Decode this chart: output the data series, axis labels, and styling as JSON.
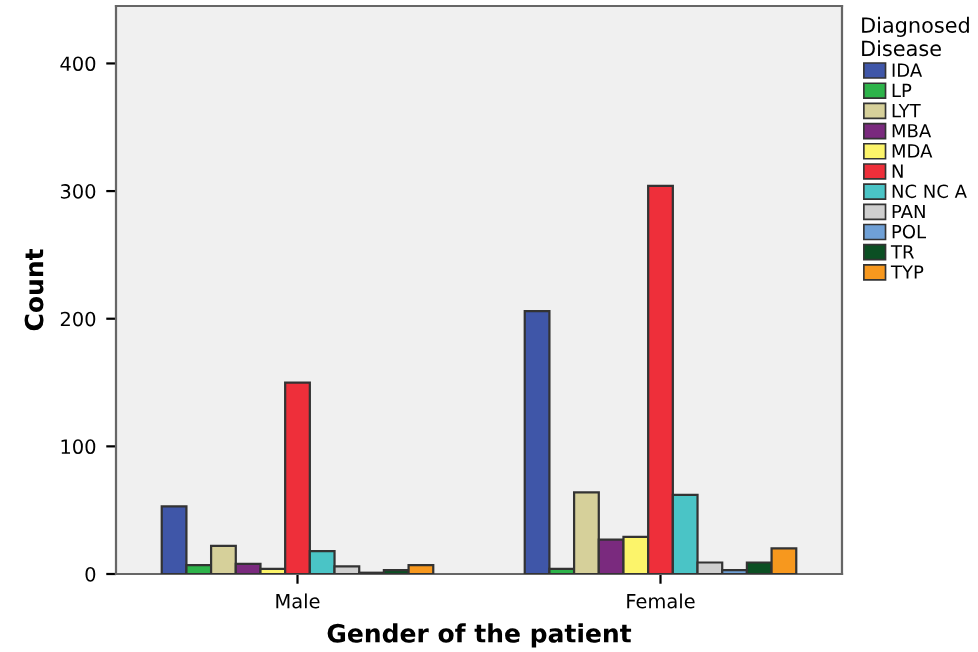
{
  "chart_data": {
    "type": "bar",
    "xlabel": "Gender of the patient",
    "ylabel": "Count",
    "legend_title": "Diagnosed\nDisease",
    "categories": [
      "Male",
      "Female"
    ],
    "series": [
      {
        "name": "IDA",
        "color": "#3f56a8",
        "values": [
          53,
          206
        ]
      },
      {
        "name": "LP",
        "color": "#2db34a",
        "values": [
          7,
          4
        ]
      },
      {
        "name": "LYT",
        "color": "#d6d09a",
        "values": [
          22,
          64
        ]
      },
      {
        "name": "MBA",
        "color": "#7a2a7e",
        "values": [
          8,
          27
        ]
      },
      {
        "name": "MDA",
        "color": "#fcf46a",
        "values": [
          4,
          29
        ]
      },
      {
        "name": "N",
        "color": "#ee2f3a",
        "values": [
          150,
          304
        ]
      },
      {
        "name": "NC NC A",
        "color": "#4ac4c6",
        "values": [
          18,
          62
        ]
      },
      {
        "name": "PAN",
        "color": "#cfcfcf",
        "values": [
          6,
          9
        ]
      },
      {
        "name": "POL",
        "color": "#6fa0d6",
        "values": [
          1,
          3
        ]
      },
      {
        "name": "TR",
        "color": "#0b4f23",
        "values": [
          3,
          9
        ]
      },
      {
        "name": "TYP",
        "color": "#f7981e",
        "values": [
          7,
          20
        ]
      }
    ],
    "ylim": [
      0,
      445
    ],
    "yticks": [
      0,
      100,
      200,
      300,
      400
    ],
    "grid": false,
    "legend": "right"
  }
}
